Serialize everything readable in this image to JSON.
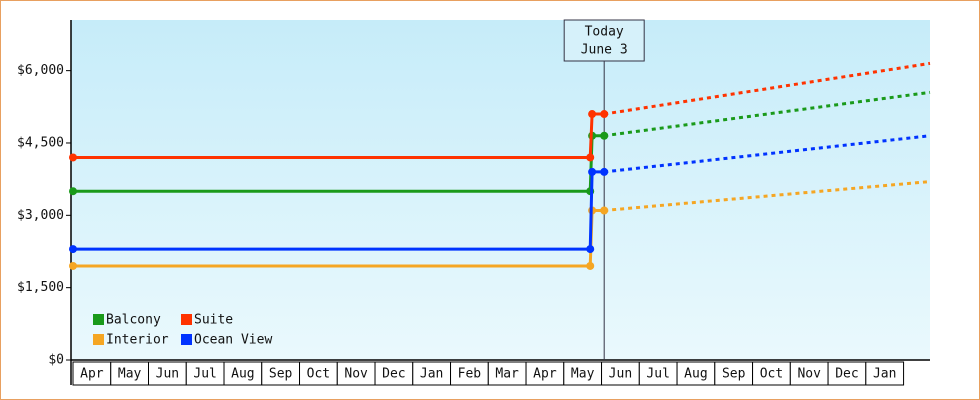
{
  "chart_data": {
    "type": "line",
    "categories": [
      "Apr",
      "May",
      "Jun",
      "Jul",
      "Aug",
      "Sep",
      "Oct",
      "Nov",
      "Dec",
      "Jan",
      "Feb",
      "Mar",
      "Apr",
      "May",
      "Jun",
      "Jul",
      "Aug",
      "Sep",
      "Oct",
      "Nov",
      "Dec",
      "Jan"
    ],
    "x": [
      0,
      13.7,
      13.75,
      14.07,
      22.7
    ],
    "xlim": [
      0,
      22.7
    ],
    "ylim": [
      0,
      7050
    ],
    "yticks": [
      {
        "value": 0,
        "label": "$0"
      },
      {
        "value": 1500,
        "label": "$1,500"
      },
      {
        "value": 3000,
        "label": "$3,000"
      },
      {
        "value": 4500,
        "label": "$4,500"
      },
      {
        "value": 6000,
        "label": "$6,000"
      }
    ],
    "today": {
      "x": 14.07,
      "label": [
        "Today",
        "June 3"
      ]
    },
    "legend": "bottom-left",
    "series": [
      {
        "name": "Balcony",
        "color": "#1a9a1a",
        "values": [
          3500,
          3500,
          4650,
          4650,
          5550
        ]
      },
      {
        "name": "Suite",
        "color": "#ff3300",
        "values": [
          4200,
          4200,
          5100,
          5100,
          6150
        ]
      },
      {
        "name": "Interior",
        "color": "#f5a623",
        "values": [
          1950,
          1950,
          3100,
          3100,
          3700
        ]
      },
      {
        "name": "Ocean View",
        "color": "#0033ff",
        "values": [
          2300,
          2300,
          3900,
          3900,
          4650
        ]
      }
    ]
  }
}
